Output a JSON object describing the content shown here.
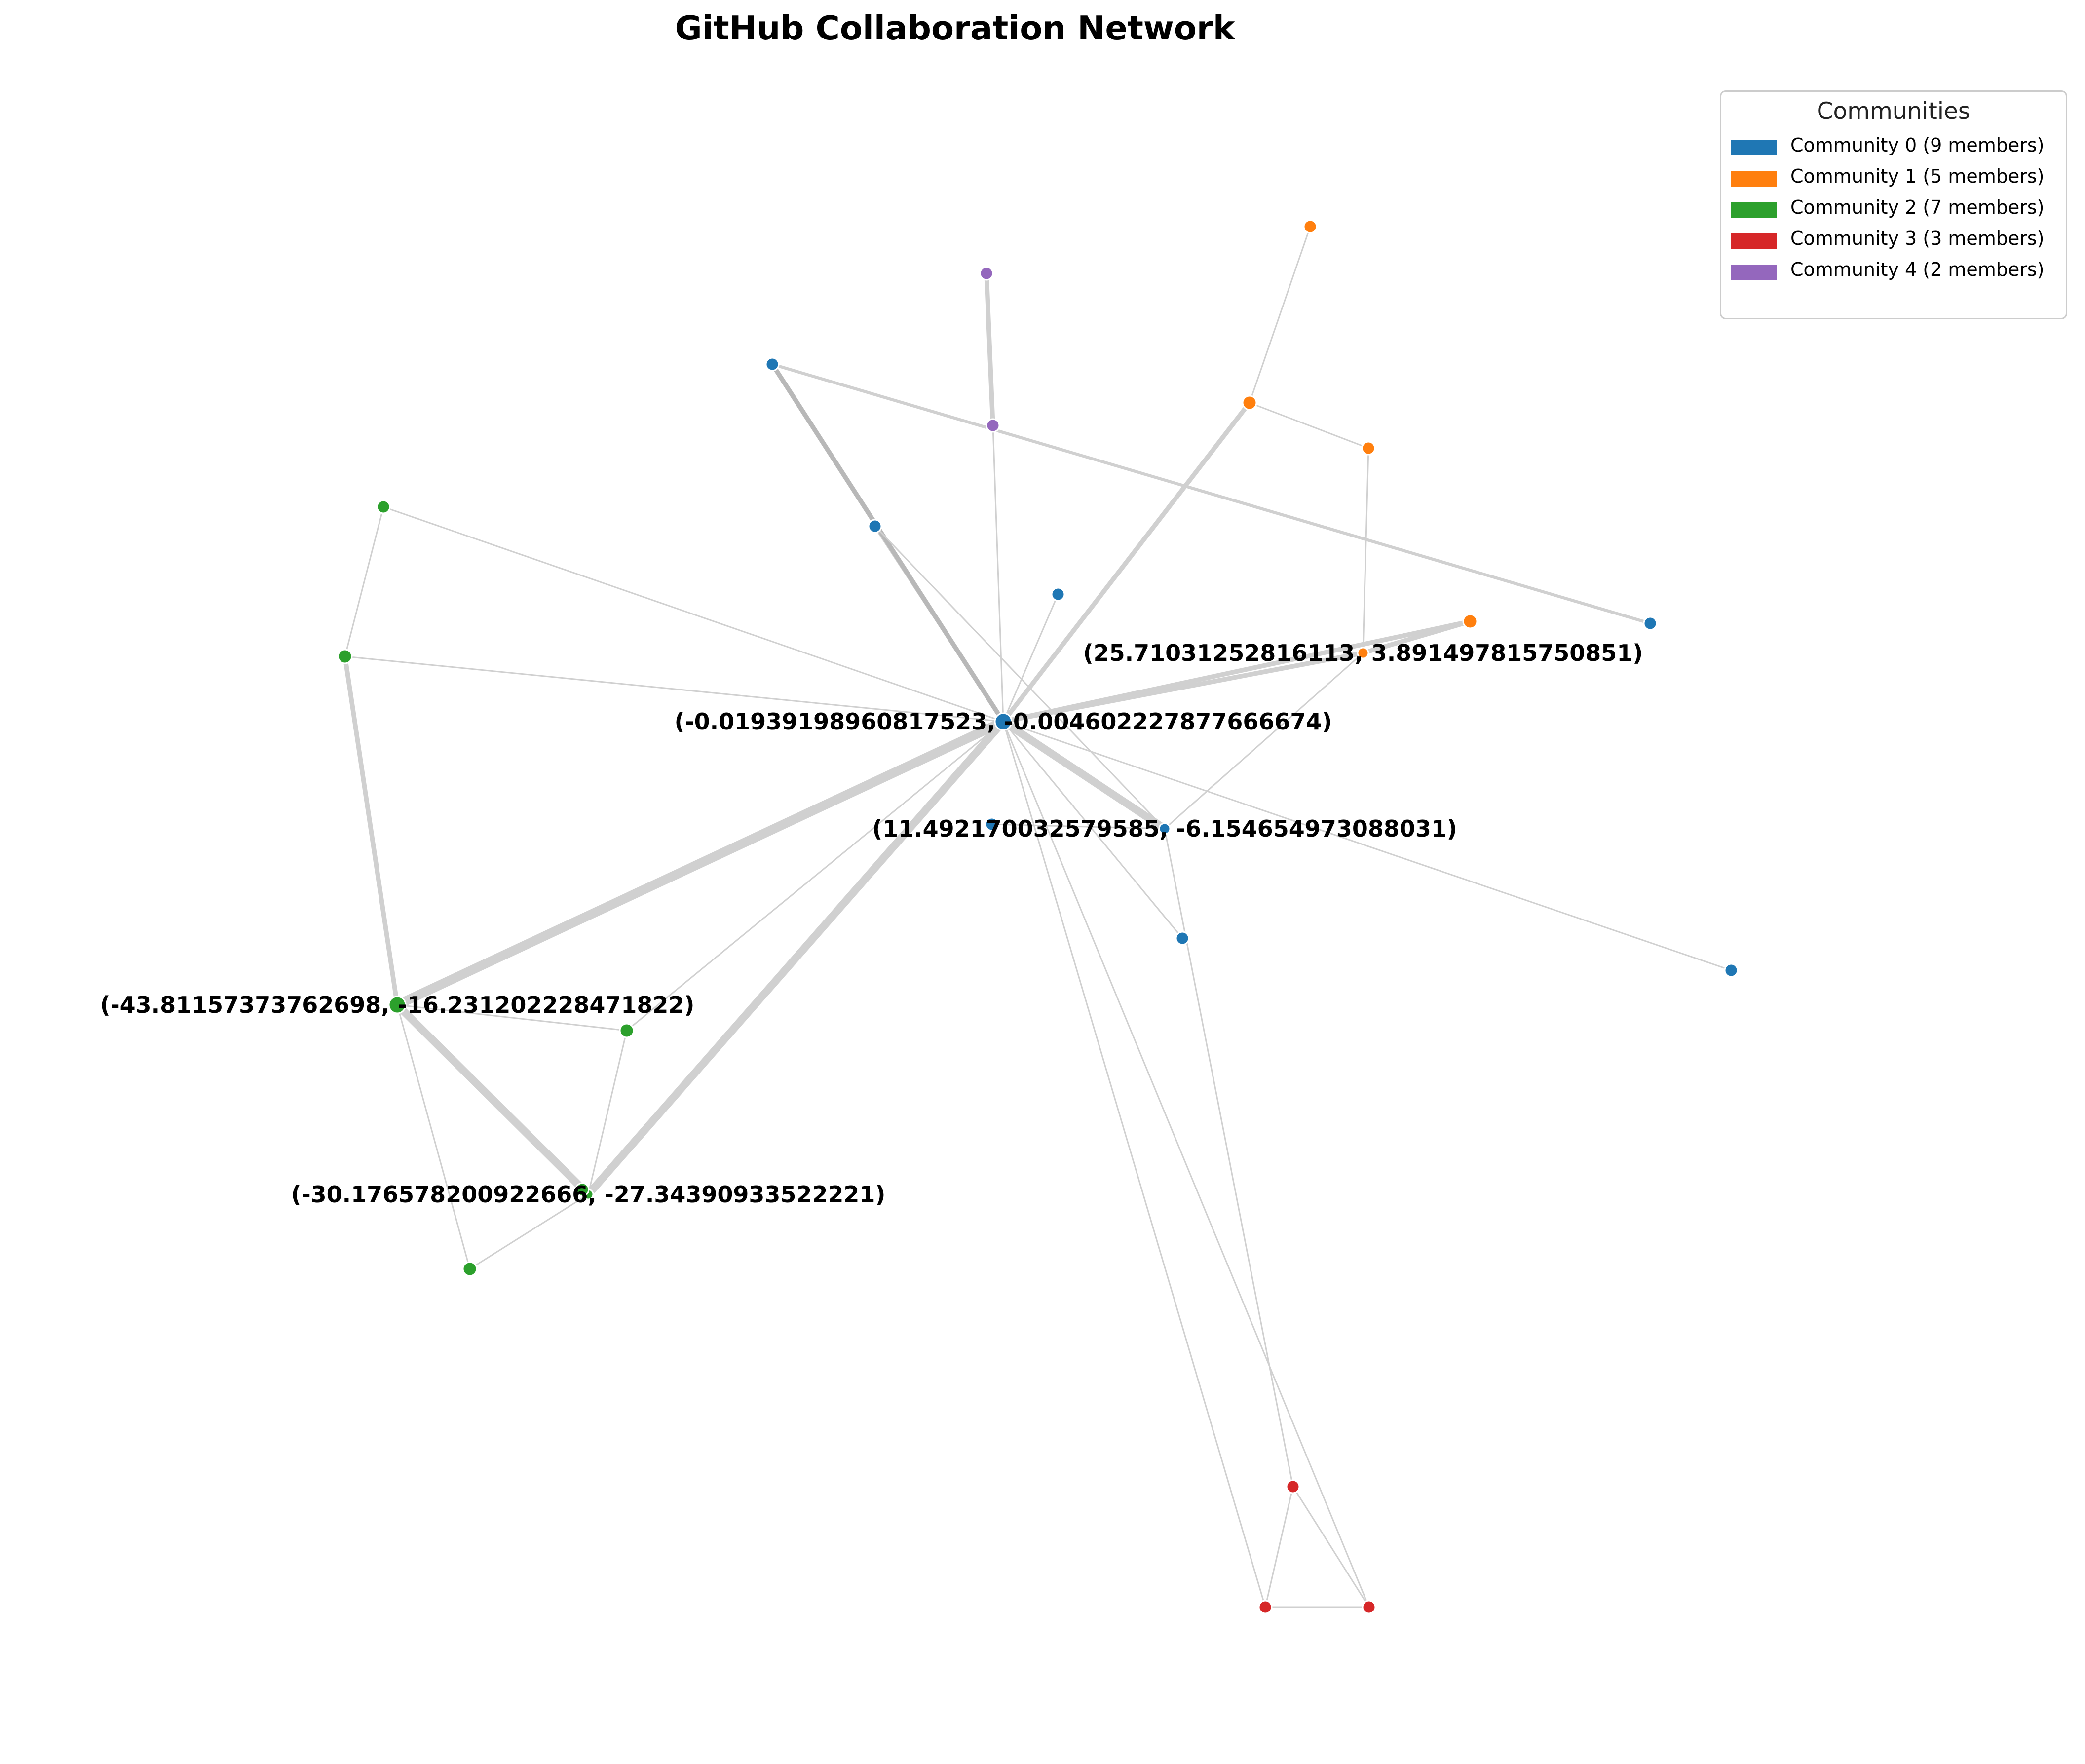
{
  "title": "GitHub Collaboration Network",
  "legend": {
    "title": "Communities",
    "items": [
      {
        "label": "Community 0 (9 members)",
        "color": "#1f77b4"
      },
      {
        "label": "Community 1 (5 members)",
        "color": "#ff7f0e"
      },
      {
        "label": "Community 2 (7 members)",
        "color": "#2ca02c"
      },
      {
        "label": "Community 3 (3 members)",
        "color": "#d62728"
      },
      {
        "label": "Community 4 (2 members)",
        "color": "#9467bd"
      }
    ]
  },
  "colors": {
    "edge": "#d0d0d0",
    "edge_dark": "#b8b8b8",
    "node_outline": "#ffffff"
  },
  "graph": {
    "nodes": [
      {
        "id": "hub",
        "community": 0
      },
      {
        "id": "b1",
        "community": 0
      },
      {
        "id": "b2",
        "community": 0
      },
      {
        "id": "b3",
        "community": 0
      },
      {
        "id": "b4",
        "community": 0
      },
      {
        "id": "b5",
        "community": 0
      },
      {
        "id": "b6",
        "community": 0
      },
      {
        "id": "b7",
        "community": 0
      },
      {
        "id": "b8",
        "community": 0
      },
      {
        "id": "o1",
        "community": 1
      },
      {
        "id": "o2",
        "community": 1
      },
      {
        "id": "o3",
        "community": 1
      },
      {
        "id": "o4",
        "community": 1
      },
      {
        "id": "o5",
        "community": 1
      },
      {
        "id": "g1",
        "community": 2
      },
      {
        "id": "g2",
        "community": 2
      },
      {
        "id": "g3",
        "community": 2
      },
      {
        "id": "g4",
        "community": 2
      },
      {
        "id": "g5",
        "community": 2
      },
      {
        "id": "g6",
        "community": 2
      },
      {
        "id": "g7",
        "community": 2
      },
      {
        "id": "r1",
        "community": 3
      },
      {
        "id": "r2",
        "community": 3
      },
      {
        "id": "r3",
        "community": 3
      },
      {
        "id": "p1",
        "community": 4
      },
      {
        "id": "p2",
        "community": 4
      }
    ],
    "edges": [
      {
        "source": "hub",
        "target": "b3",
        "weight": 2
      },
      {
        "source": "hub",
        "target": "b1",
        "weight": 3
      },
      {
        "source": "hub",
        "target": "b4",
        "weight": 1
      },
      {
        "source": "hub",
        "target": "b2",
        "weight": 5
      },
      {
        "source": "hub",
        "target": "g1",
        "weight": 1
      },
      {
        "source": "hub",
        "target": "g2",
        "weight": 1
      },
      {
        "source": "hub",
        "target": "g3",
        "weight": 6
      },
      {
        "source": "hub",
        "target": "g4",
        "weight": 1
      },
      {
        "source": "hub",
        "target": "g5",
        "weight": 5
      },
      {
        "source": "hub",
        "target": "o1",
        "weight": 3
      },
      {
        "source": "hub",
        "target": "o3",
        "weight": 3
      },
      {
        "source": "hub",
        "target": "o4",
        "weight": 3
      },
      {
        "source": "hub",
        "target": "b6",
        "weight": 1
      },
      {
        "source": "hub",
        "target": "b7",
        "weight": 1
      },
      {
        "source": "hub",
        "target": "r2",
        "weight": 1
      },
      {
        "source": "hub",
        "target": "r3",
        "weight": 1
      },
      {
        "source": "b1",
        "target": "b5",
        "weight": 2
      },
      {
        "source": "b3",
        "target": "b2",
        "weight": 1
      },
      {
        "source": "b2",
        "target": "b8",
        "weight": 1
      },
      {
        "source": "b2",
        "target": "o4",
        "weight": 1
      },
      {
        "source": "b2",
        "target": "r1",
        "weight": 1
      },
      {
        "source": "p1",
        "target": "p2",
        "weight": 3
      },
      {
        "source": "p2",
        "target": "hub",
        "weight": 1
      },
      {
        "source": "o2",
        "target": "o1",
        "weight": 1
      },
      {
        "source": "o1",
        "target": "o5",
        "weight": 1
      },
      {
        "source": "o5",
        "target": "o4",
        "weight": 1
      },
      {
        "source": "o4",
        "target": "o3",
        "weight": 3
      },
      {
        "source": "g1",
        "target": "g2",
        "weight": 1
      },
      {
        "source": "g2",
        "target": "g3",
        "weight": 3
      },
      {
        "source": "g3",
        "target": "g4",
        "weight": 1
      },
      {
        "source": "g3",
        "target": "g5",
        "weight": 5
      },
      {
        "source": "g3",
        "target": "g6",
        "weight": 1
      },
      {
        "source": "g3",
        "target": "g7",
        "weight": 1
      },
      {
        "source": "g4",
        "target": "g5",
        "weight": 1
      },
      {
        "source": "g5",
        "target": "g6",
        "weight": 1
      },
      {
        "source": "r1",
        "target": "r2",
        "weight": 1
      },
      {
        "source": "r1",
        "target": "r3",
        "weight": 1
      },
      {
        "source": "r2",
        "target": "r3",
        "weight": 1
      }
    ],
    "labels": [
      {
        "node": "hub",
        "text": "(-0.01939198960817523, -0.004602227877666674)"
      },
      {
        "node": "o4",
        "text": "(25.71031252816113, 3.891497815750851)"
      },
      {
        "node": "b2",
        "text": "(11.492170032579585, -6.154654973088031)"
      },
      {
        "node": "g3",
        "text": "(-43.81157373762698, -16.231202228471822)"
      },
      {
        "node": "g5",
        "text": "(-30.176578200922666, -27.34390933522221)"
      }
    ]
  }
}
